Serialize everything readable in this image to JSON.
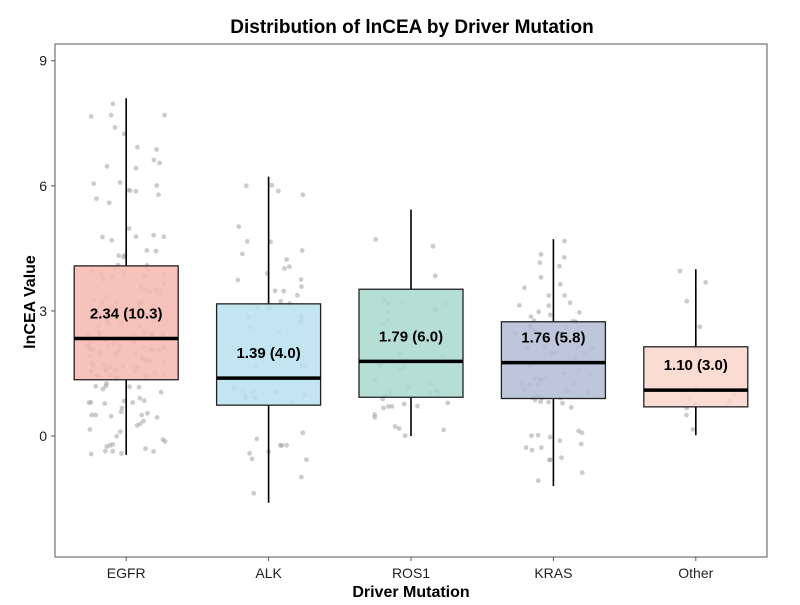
{
  "chart_data": {
    "type": "box",
    "title": "Distribution of lnCEA by Driver Mutation",
    "xlabel": "Driver Mutation",
    "ylabel": "lnCEA Value",
    "ylim": [
      -2.9,
      9.4
    ],
    "yticks": [
      0,
      3,
      6,
      9
    ],
    "ytick_labels": [
      "0",
      "3",
      "6",
      "9"
    ],
    "categories": [
      "EGFR",
      "ALK",
      "ROS1",
      "KRAS",
      "Other"
    ],
    "boxes": [
      {
        "name": "EGFR",
        "whisker_low": -0.45,
        "q1": 1.35,
        "median": 2.34,
        "q3": 4.08,
        "whisker_high": 8.1,
        "label": "2.34 (10.3)",
        "fill": "#F4B7AE",
        "n_points": 160
      },
      {
        "name": "ALK",
        "whisker_low": -1.6,
        "q1": 0.74,
        "median": 1.39,
        "q3": 3.17,
        "whisker_high": 6.22,
        "label": "1.39 (4.0)",
        "fill": "#B7E1EF",
        "n_points": 55
      },
      {
        "name": "ROS1",
        "whisker_low": 0.0,
        "q1": 0.93,
        "median": 1.79,
        "q3": 3.52,
        "whisker_high": 5.43,
        "label": "1.79 (6.0)",
        "fill": "#A8D9CD",
        "n_points": 40
      },
      {
        "name": "KRAS",
        "whisker_low": -1.2,
        "q1": 0.9,
        "median": 1.76,
        "q3": 2.74,
        "whisker_high": 4.72,
        "label": "1.76 (5.8)",
        "fill": "#B3BCD5",
        "n_points": 75
      },
      {
        "name": "Other",
        "whisker_low": 0.02,
        "q1": 0.7,
        "median": 1.1,
        "q3": 2.14,
        "whisker_high": 4.0,
        "label": "1.10 (3.0)",
        "fill": "#F9D6CB",
        "n_points": 16
      }
    ],
    "point_color": "#9a9a9a",
    "grid": false,
    "legend": "none"
  }
}
